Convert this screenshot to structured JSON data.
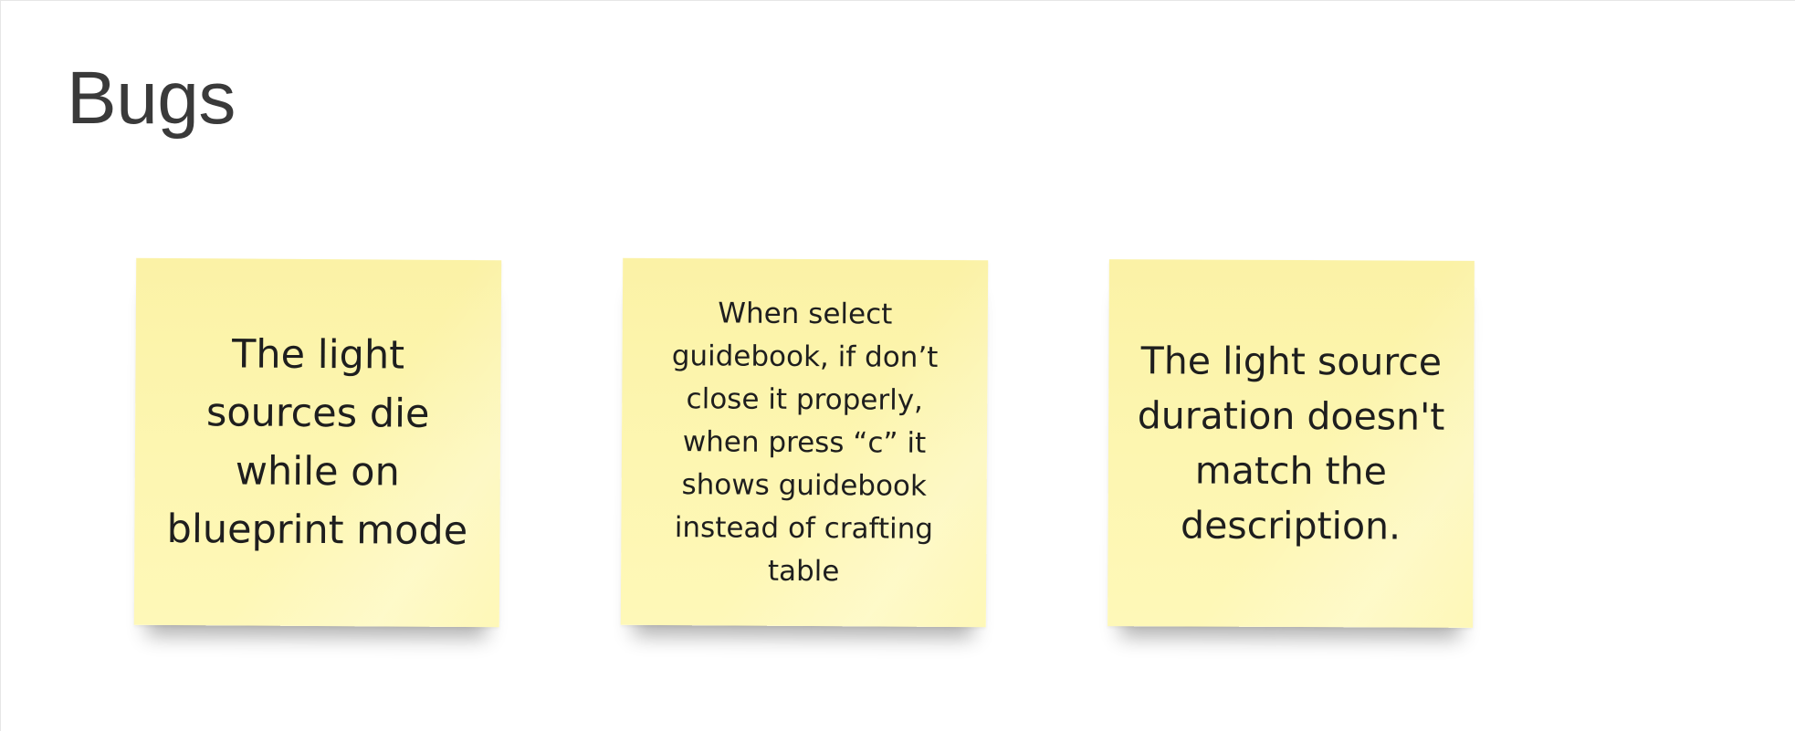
{
  "board": {
    "title": "Bugs"
  },
  "stickies": [
    {
      "text": "The light sources die while on blueprint mode",
      "color": "#fdf6b1"
    },
    {
      "text": "When select guidebook, if don’t close it properly, when press “c” it shows guidebook instead of crafting table",
      "color": "#fdf6b1"
    },
    {
      "text": "The light source duration doesn't match the description.",
      "color": "#fdf6b1"
    }
  ]
}
